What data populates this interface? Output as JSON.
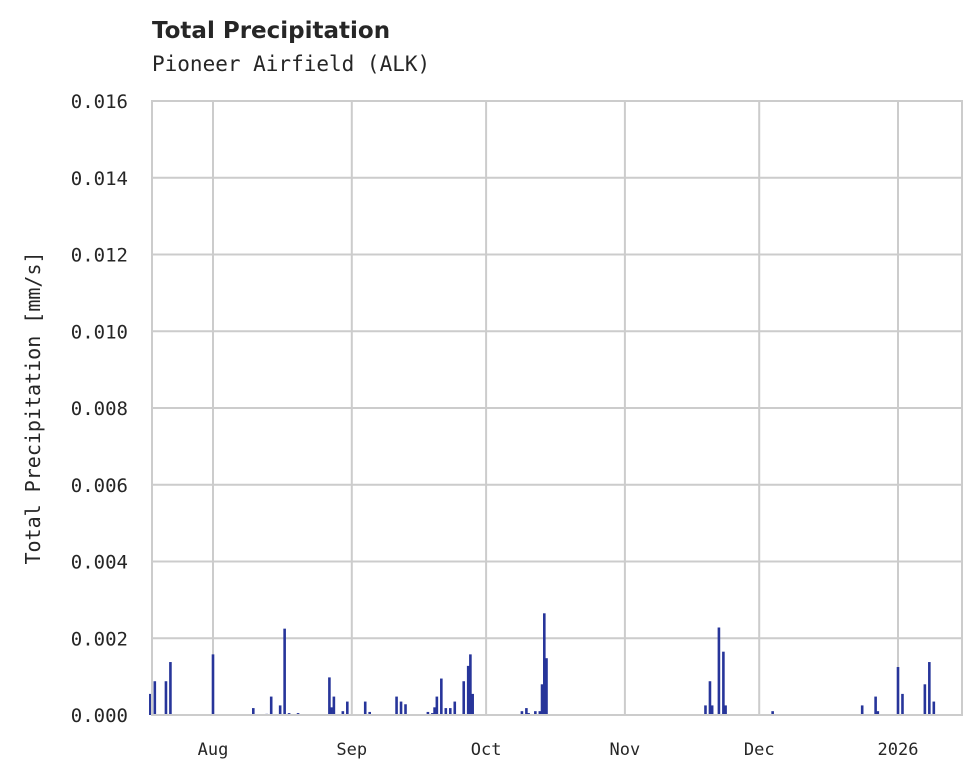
{
  "header": {
    "title": "Total Precipitation",
    "subtitle": "Pioneer Airfield (ALK)"
  },
  "colors": {
    "bar": "#27359a",
    "grid": "#cccccc",
    "frame": "#cccccc",
    "text": "#262626",
    "background": "#ffffff"
  },
  "chart_data": {
    "type": "bar",
    "title": "Total Precipitation",
    "subtitle": "Pioneer Airfield (ALK)",
    "xlabel": "",
    "ylabel": "Total Precipitation [mm/s]",
    "ylim": [
      0,
      0.016
    ],
    "yticks": [
      0.0,
      0.002,
      0.004,
      0.006,
      0.008,
      0.01,
      0.012,
      0.014,
      0.016
    ],
    "ytick_labels": [
      "0.000",
      "0.002",
      "0.004",
      "0.006",
      "0.008",
      "0.010",
      "0.012",
      "0.014",
      "0.016"
    ],
    "xlim": [
      "2025-07-18",
      "2026-01-12"
    ],
    "xticks": [
      "2025-08-01",
      "2025-09-01",
      "2025-10-01",
      "2025-11-01",
      "2025-12-01",
      "2026-01-01"
    ],
    "xtick_labels": [
      "Aug",
      "Sep",
      "Oct",
      "Nov",
      "Dec",
      "2026"
    ],
    "grid": true,
    "legend": null,
    "series": [
      {
        "name": "Total Precipitation",
        "points": [
          {
            "x": "2025-07-18",
            "y": 0.00055
          },
          {
            "x": "2025-07-19",
            "y": 0.00088
          },
          {
            "x": "2025-07-20",
            "y": 2e-05
          },
          {
            "x": "2025-07-21",
            "y": 2e-05
          },
          {
            "x": "2025-07-21",
            "y": 0.00088
          },
          {
            "x": "2025-07-22",
            "y": 2e-05
          },
          {
            "x": "2025-07-22",
            "y": 0.00138
          },
          {
            "x": "2025-08-01",
            "y": 0.00158
          },
          {
            "x": "2025-08-10",
            "y": 0.00018
          },
          {
            "x": "2025-08-13",
            "y": 3e-05
          },
          {
            "x": "2025-08-14",
            "y": 0.00048
          },
          {
            "x": "2025-08-16",
            "y": 0.00025
          },
          {
            "x": "2025-08-17",
            "y": 0.00225
          },
          {
            "x": "2025-08-18",
            "y": 5e-05
          },
          {
            "x": "2025-08-20",
            "y": 5e-05
          },
          {
            "x": "2025-08-27",
            "y": 0.00098
          },
          {
            "x": "2025-08-27",
            "y": 0.0002
          },
          {
            "x": "2025-08-28",
            "y": 0.00048
          },
          {
            "x": "2025-08-30",
            "y": 0.0001
          },
          {
            "x": "2025-08-31",
            "y": 0.00035
          },
          {
            "x": "2025-09-04",
            "y": 0.00035
          },
          {
            "x": "2025-09-05",
            "y": 8e-05
          },
          {
            "x": "2025-09-11",
            "y": 0.00048
          },
          {
            "x": "2025-09-12",
            "y": 0.00035
          },
          {
            "x": "2025-09-13",
            "y": 0.00028
          },
          {
            "x": "2025-09-18",
            "y": 8e-05
          },
          {
            "x": "2025-09-19",
            "y": 5e-05
          },
          {
            "x": "2025-09-19",
            "y": 0.0002
          },
          {
            "x": "2025-09-20",
            "y": 0.00048
          },
          {
            "x": "2025-09-21",
            "y": 0.00095
          },
          {
            "x": "2025-09-22",
            "y": 0.00018
          },
          {
            "x": "2025-09-23",
            "y": 0.00018
          },
          {
            "x": "2025-09-24",
            "y": 0.00035
          },
          {
            "x": "2025-09-26",
            "y": 0.00088
          },
          {
            "x": "2025-09-27",
            "y": 0.00128
          },
          {
            "x": "2025-09-27",
            "y": 0.00158
          },
          {
            "x": "2025-09-28",
            "y": 0.00055
          },
          {
            "x": "2025-10-09",
            "y": 0.0001
          },
          {
            "x": "2025-10-10",
            "y": 0.00018
          },
          {
            "x": "2025-10-10",
            "y": 5e-05
          },
          {
            "x": "2025-10-12",
            "y": 0.0001
          },
          {
            "x": "2025-10-13",
            "y": 0.0001
          },
          {
            "x": "2025-10-13",
            "y": 0.0008
          },
          {
            "x": "2025-10-14",
            "y": 0.00265
          },
          {
            "x": "2025-10-14",
            "y": 0.00148
          },
          {
            "x": "2025-11-19",
            "y": 0.00025
          },
          {
            "x": "2025-11-20",
            "y": 0.00088
          },
          {
            "x": "2025-11-20",
            "y": 0.00025
          },
          {
            "x": "2025-11-22",
            "y": 0.00228
          },
          {
            "x": "2025-11-23",
            "y": 0.00165
          },
          {
            "x": "2025-11-23",
            "y": 0.00025
          },
          {
            "x": "2025-12-04",
            "y": 0.0001
          },
          {
            "x": "2025-12-24",
            "y": 0.00025
          },
          {
            "x": "2025-12-27",
            "y": 0.00048
          },
          {
            "x": "2025-12-27",
            "y": 0.0001
          },
          {
            "x": "2026-01-01",
            "y": 0.00125
          },
          {
            "x": "2026-01-02",
            "y": 0.00055
          },
          {
            "x": "2026-01-07",
            "y": 0.0008
          },
          {
            "x": "2026-01-08",
            "y": 0.00138
          },
          {
            "x": "2026-01-09",
            "y": 0.00035
          }
        ]
      }
    ]
  }
}
